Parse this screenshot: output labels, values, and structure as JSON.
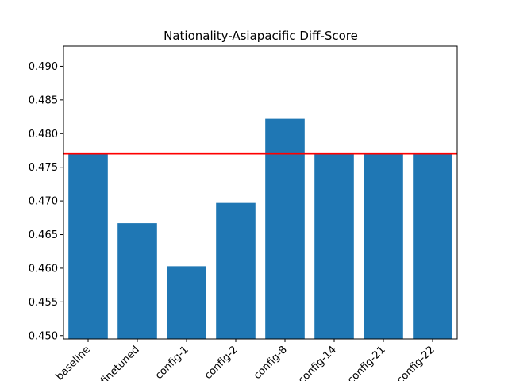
{
  "chart_data": {
    "type": "bar",
    "title": "Nationality-Asiapacific Diff-Score",
    "xlabel": "",
    "ylabel": "",
    "categories": [
      "baseline",
      "finetuned",
      "config-1",
      "config-2",
      "config-8",
      "config-14",
      "config-21",
      "config-22"
    ],
    "values": [
      0.477,
      0.4667,
      0.4603,
      0.4697,
      0.4822,
      0.477,
      0.477,
      0.477
    ],
    "ylim": [
      0.4495,
      0.493
    ],
    "yticks": [
      0.45,
      0.455,
      0.46,
      0.465,
      0.47,
      0.475,
      0.48,
      0.485,
      0.49
    ],
    "ytick_labels": [
      "0.450",
      "0.455",
      "0.460",
      "0.465",
      "0.470",
      "0.475",
      "0.480",
      "0.485",
      "0.490"
    ],
    "reference_line": {
      "value": 0.477,
      "color": "#ff0000"
    },
    "bar_color": "#1f77b4",
    "grid": false
  }
}
